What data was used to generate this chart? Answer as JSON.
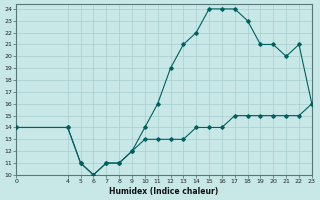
{
  "background_color": "#c8e8e8",
  "grid_color": "#a8cccc",
  "line_color": "#006060",
  "xlabel": "Humidex (Indice chaleur)",
  "xlim": [
    0,
    23
  ],
  "ylim": [
    10,
    24.4
  ],
  "xticks": [
    0,
    4,
    5,
    6,
    7,
    8,
    9,
    10,
    11,
    12,
    13,
    14,
    15,
    16,
    17,
    18,
    19,
    20,
    21,
    22,
    23
  ],
  "yticks": [
    10,
    11,
    12,
    13,
    14,
    15,
    16,
    17,
    18,
    19,
    20,
    21,
    22,
    23,
    24
  ],
  "upper_x": [
    0,
    4,
    5,
    6,
    7,
    8,
    9,
    10,
    11,
    12,
    13,
    14,
    15,
    16,
    17,
    18,
    19,
    20,
    21,
    22,
    23
  ],
  "upper_y": [
    14,
    14,
    11,
    10,
    11,
    11,
    12,
    14,
    16,
    19,
    21,
    22,
    24,
    24,
    24,
    23,
    21,
    21,
    20,
    21,
    16
  ],
  "lower_x": [
    0,
    4,
    5,
    6,
    7,
    8,
    9,
    10,
    11,
    12,
    13,
    14,
    15,
    16,
    17,
    18,
    19,
    20,
    21,
    22,
    23
  ],
  "lower_y": [
    14,
    14,
    11,
    10,
    11,
    11,
    12,
    13,
    13,
    13,
    13,
    14,
    14,
    14,
    15,
    15,
    15,
    15,
    15,
    15,
    16
  ],
  "marker_style": "D",
  "marker_size": 1.8,
  "line_width": 0.8,
  "tick_fontsize": 4.5,
  "xlabel_fontsize": 5.5,
  "xlabel_fontweight": "bold"
}
